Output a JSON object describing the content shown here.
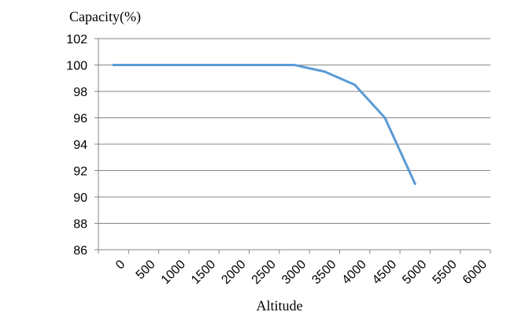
{
  "chart_data": {
    "type": "line",
    "ylabel": "Capacity(%)",
    "xlabel": "Altitude",
    "categories": [
      "0",
      "500",
      "1000",
      "1500",
      "2000",
      "2500",
      "3000",
      "3500",
      "4000",
      "4500",
      "5000",
      "5500",
      "6000"
    ],
    "ylim": [
      86,
      102
    ],
    "ytick_labels": [
      "86",
      "88",
      "90",
      "92",
      "94",
      "96",
      "98",
      "100",
      "102"
    ],
    "grid": true,
    "legend": "none",
    "line_color": "#5B9BD5",
    "series": [
      {
        "x": [
          0,
          3000,
          3500,
          4000,
          4500,
          5000
        ],
        "values": [
          100,
          100,
          99.5,
          98.5,
          96,
          91
        ]
      }
    ]
  }
}
